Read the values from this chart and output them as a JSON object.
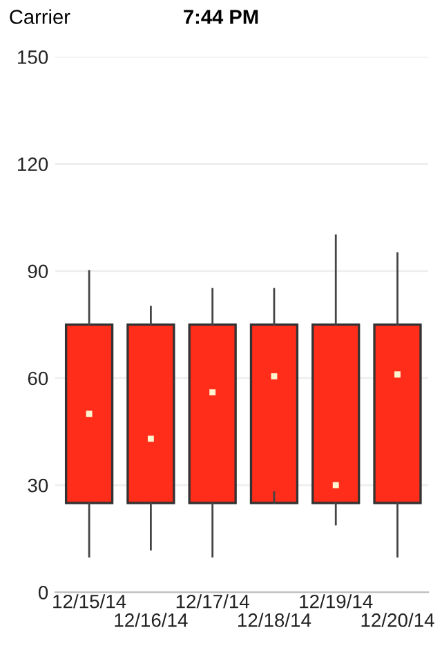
{
  "chart_data": {
    "type": "box",
    "categories": [
      "12/15/14",
      "12/16/14",
      "12/17/14",
      "12/18/14",
      "12/19/14",
      "12/20/14"
    ],
    "boxes": [
      {
        "low": 10,
        "q1": 25,
        "median": 50,
        "q3": 75,
        "high": 90
      },
      {
        "low": 12,
        "q1": 25,
        "median": 43,
        "q3": 75,
        "high": 80
      },
      {
        "low": 10,
        "q1": 25,
        "median": 56,
        "q3": 75,
        "high": 85
      },
      {
        "low": 28,
        "q1": 25,
        "median": 60.5,
        "q3": 75,
        "high": 85
      },
      {
        "low": 19,
        "q1": 25,
        "median": 30,
        "q3": 75,
        "high": 100
      },
      {
        "low": 10,
        "q1": 25,
        "median": 61,
        "q3": 75,
        "high": 95
      }
    ],
    "color": "#ff2d1a",
    "ylim": [
      0,
      150
    ],
    "yticks": [
      0,
      30,
      60,
      90,
      120,
      150
    ],
    "grid": "y",
    "legend": false,
    "annotations": [
      "Carrier",
      "7:44 PM"
    ]
  }
}
